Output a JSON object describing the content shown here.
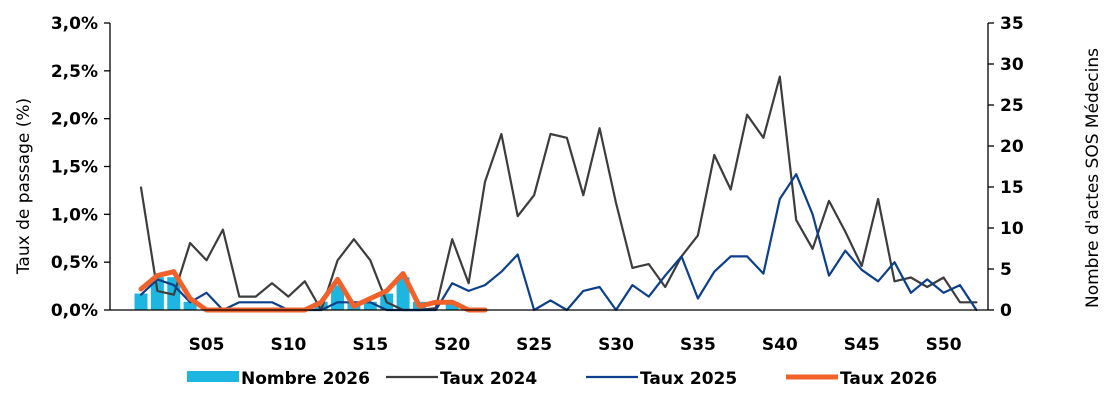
{
  "chart_data": {
    "type": "bar+line",
    "title": "",
    "xlabel": "",
    "ylabel_left": "Taux de passage  (%)",
    "ylabel_right": "Nombre d'actes SOS Médecins",
    "ylim_left": [
      0,
      3.0
    ],
    "ylim_right": [
      0,
      35
    ],
    "y_left_ticks": [
      "0,0%",
      "0,5%",
      "1,0%",
      "1,5%",
      "2,0%",
      "2,5%",
      "3,0%"
    ],
    "y_right_ticks": [
      "0",
      "5",
      "10",
      "15",
      "20",
      "25",
      "30",
      "35"
    ],
    "x_tick_labels": [
      {
        "week": 5,
        "label": "S05"
      },
      {
        "week": 10,
        "label": "S10"
      },
      {
        "week": 15,
        "label": "S15"
      },
      {
        "week": 20,
        "label": "S20"
      },
      {
        "week": 25,
        "label": "S25"
      },
      {
        "week": 30,
        "label": "S30"
      },
      {
        "week": 35,
        "label": "S35"
      },
      {
        "week": 40,
        "label": "S40"
      },
      {
        "week": 45,
        "label": "S45"
      },
      {
        "week": 50,
        "label": "S50"
      }
    ],
    "grid": false,
    "legend_position": "bottom",
    "bars": {
      "name": "Nombre 2026",
      "axis": "right",
      "color": "#1cb6e0",
      "weeks": [
        1,
        2,
        3,
        4,
        5,
        6,
        7,
        8,
        9,
        10,
        11,
        12,
        13,
        14,
        15,
        16,
        17,
        18,
        19,
        20,
        21,
        22
      ],
      "values": [
        2,
        4,
        4,
        1,
        0,
        0,
        0,
        0,
        0,
        0,
        0,
        1,
        3,
        1,
        1,
        2,
        4,
        1,
        0,
        1,
        0,
        0
      ]
    },
    "series": [
      {
        "name": "Taux 2024",
        "axis": "left",
        "color": "#3d3d3d",
        "weeks": [
          1,
          2,
          3,
          4,
          5,
          6,
          7,
          8,
          9,
          10,
          11,
          12,
          13,
          14,
          15,
          16,
          17,
          18,
          19,
          20,
          21,
          22,
          23,
          24,
          25,
          26,
          27,
          28,
          29,
          30,
          31,
          32,
          33,
          34,
          35,
          36,
          37,
          38,
          39,
          40,
          41,
          42,
          43,
          44,
          45,
          46,
          47,
          48,
          49,
          50,
          51,
          52
        ],
        "values": [
          1.28,
          0.2,
          0.16,
          0.7,
          0.52,
          0.84,
          0.14,
          0.14,
          0.28,
          0.14,
          0.3,
          0.0,
          0.52,
          0.74,
          0.52,
          0.08,
          0.0,
          0.0,
          0.02,
          0.74,
          0.28,
          1.34,
          1.84,
          0.98,
          1.2,
          1.84,
          1.8,
          1.2,
          1.9,
          1.12,
          0.44,
          0.48,
          0.24,
          0.56,
          0.78,
          1.62,
          1.26,
          2.04,
          1.8,
          2.44,
          0.94,
          0.64,
          1.14,
          0.82,
          0.46,
          1.16,
          0.3,
          0.34,
          0.24,
          0.34,
          0.08,
          0.08
        ]
      },
      {
        "name": "Taux 2025",
        "axis": "left",
        "color": "#0c3f8c",
        "weeks": [
          1,
          2,
          3,
          4,
          5,
          6,
          7,
          8,
          9,
          10,
          11,
          12,
          13,
          14,
          15,
          16,
          17,
          18,
          19,
          20,
          21,
          22,
          23,
          24,
          25,
          26,
          27,
          28,
          29,
          30,
          31,
          32,
          33,
          34,
          35,
          36,
          37,
          38,
          39,
          40,
          41,
          42,
          43,
          44,
          45,
          46,
          47,
          48,
          49,
          50,
          51,
          52
        ],
        "values": [
          0.16,
          0.32,
          0.26,
          0.08,
          0.18,
          0.0,
          0.08,
          0.08,
          0.08,
          0.0,
          0.0,
          0.0,
          0.08,
          0.08,
          0.08,
          0.0,
          0.0,
          0.0,
          0.0,
          0.28,
          0.2,
          0.26,
          0.4,
          0.58,
          0.0,
          0.1,
          0.0,
          0.2,
          0.24,
          0.0,
          0.26,
          0.14,
          0.36,
          0.56,
          0.12,
          0.4,
          0.56,
          0.56,
          0.38,
          1.16,
          1.42,
          1.0,
          0.36,
          0.62,
          0.42,
          0.3,
          0.5,
          0.18,
          0.32,
          0.18,
          0.26,
          0.0
        ]
      },
      {
        "name": "Taux 2026",
        "axis": "left",
        "color": "#f0622a",
        "weeks": [
          1,
          2,
          3,
          4,
          5,
          6,
          7,
          8,
          9,
          10,
          11,
          12,
          13,
          14,
          15,
          16,
          17,
          18,
          19,
          20,
          21,
          22
        ],
        "values": [
          0.22,
          0.36,
          0.4,
          0.12,
          0.0,
          0.0,
          0.0,
          0.0,
          0.0,
          0.0,
          0.0,
          0.08,
          0.32,
          0.04,
          0.12,
          0.2,
          0.38,
          0.04,
          0.08,
          0.08,
          0.0,
          0.0
        ]
      }
    ],
    "legend": [
      {
        "name": "Nombre 2026",
        "kind": "bar",
        "color": "#1cb6e0"
      },
      {
        "name": "Taux 2024",
        "kind": "line",
        "color": "#3d3d3d"
      },
      {
        "name": "Taux 2025",
        "kind": "line",
        "color": "#0c3f8c"
      },
      {
        "name": "Taux 2026",
        "kind": "line-thick",
        "color": "#f0622a"
      }
    ]
  }
}
